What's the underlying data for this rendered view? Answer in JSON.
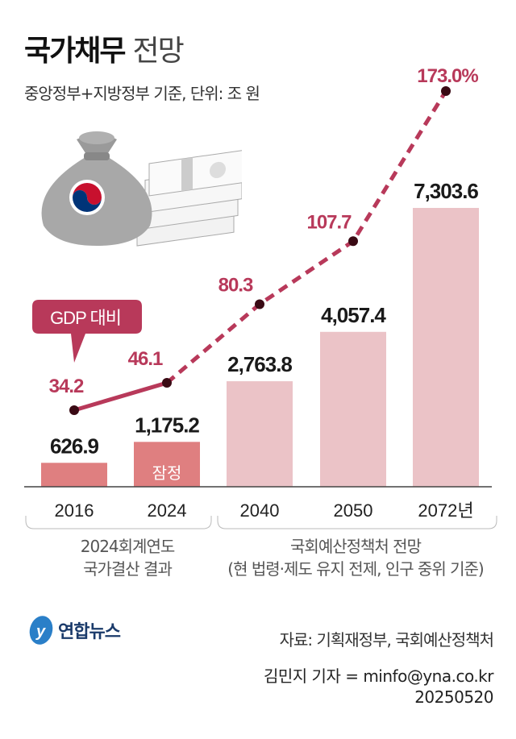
{
  "header": {
    "title": "국가채무",
    "title_suffix": "전망",
    "subtitle": "중앙정부+지방정부 기준, 단위: 조 원"
  },
  "chart_data": {
    "type": "bar+line",
    "categories": [
      "2016",
      "2024",
      "2040",
      "2050",
      "2072년"
    ],
    "series": [
      {
        "name": "국가채무",
        "kind": "bar",
        "values": [
          626.9,
          1175.2,
          2763.8,
          4057.4,
          7303.6
        ],
        "labels": [
          "626.9",
          "1,175.2",
          "2,763.8",
          "4,057.4",
          "7,303.6"
        ]
      },
      {
        "name": "GDP 대비",
        "kind": "line",
        "values": [
          34.2,
          46.1,
          80.3,
          107.7,
          173.0
        ],
        "labels": [
          "34.2",
          "46.1",
          "80.3",
          "107.7",
          "173.0%"
        ]
      }
    ],
    "bar_note": "잠정",
    "callout": "GDP 대비",
    "colors": {
      "actual_bar": "#df7f80",
      "projected_bar": "#ebc3c7",
      "line": "#b8395a",
      "marker": "#3a0a14",
      "line_label": "#b8395a"
    },
    "line_style": {
      "actual": "solid",
      "projected": "dashed"
    },
    "groups": [
      {
        "label_line1": "2024회계연도",
        "label_line2": "국가결산 결과"
      },
      {
        "label_line1": "국회예산정책처 전망",
        "label_line2": "(현 법령·제도 유지 전제, 인구 중위 기준)"
      }
    ]
  },
  "footer": {
    "logo": "연합뉴스",
    "source": "자료: 기획재정부, 국회예산정책처",
    "reporter": "김민지 기자 = minfo@yna.co.kr",
    "date": "20250520"
  }
}
